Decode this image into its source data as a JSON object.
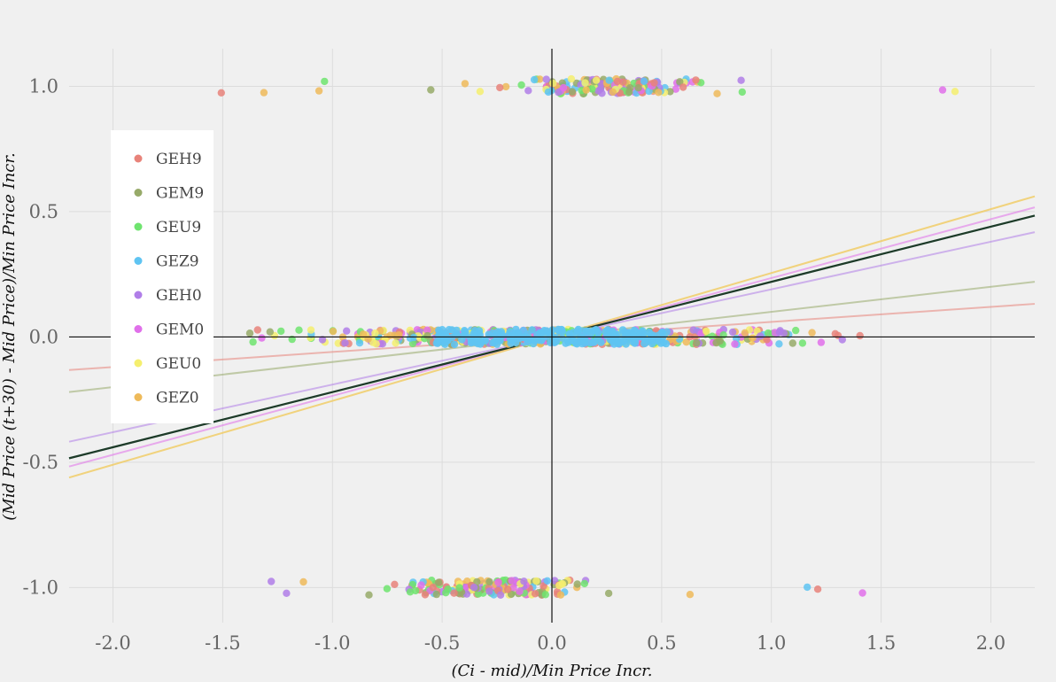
{
  "chart_data": {
    "type": "scatter",
    "title": "",
    "xlabel": "(Ci - mid)/Min Price Incr.",
    "ylabel": "(Mid Price (t+30) - Mid Price)/Min Price Incr.",
    "xlim": [
      -2.2,
      2.2
    ],
    "ylim": [
      -1.14,
      1.15
    ],
    "x_ticks": [
      -2.0,
      -1.5,
      -1.0,
      -0.5,
      0.0,
      0.5,
      1.0,
      1.5,
      2.0
    ],
    "x_tick_labels": [
      "-2.0",
      "-1.5",
      "-1.0",
      "-0.5",
      "0.0",
      "0.5",
      "1.0",
      "1.5",
      "2.0"
    ],
    "y_ticks": [
      1.0,
      0.5,
      0.0,
      -0.5,
      -1.0
    ],
    "y_tick_labels": [
      "1.0",
      "0.5",
      "0.0",
      "-0.5",
      "-1.0"
    ],
    "grid": true,
    "legend_position": "left",
    "series": [
      {
        "name": "GEH9",
        "color": "#e8837a",
        "slope": 0.06
      },
      {
        "name": "GEM9",
        "color": "#97aa69",
        "slope": 0.1
      },
      {
        "name": "GEU9",
        "color": "#6fe46f",
        "slope": 0.22
      },
      {
        "name": "GEZ9",
        "color": "#5fc4f2",
        "slope": 0.22
      },
      {
        "name": "GEH0",
        "color": "#b07ee8",
        "slope": 0.19
      },
      {
        "name": "GEM0",
        "color": "#e070ea",
        "slope": 0.235
      },
      {
        "name": "GEU0",
        "color": "#f5ef6e",
        "slope": 0.255
      },
      {
        "name": "GEZ0",
        "color": "#eeba5a",
        "slope": 0.255
      }
    ],
    "overall_fit": {
      "color": "#1e3a28",
      "slope": 0.22
    },
    "clusters": [
      {
        "y": 1.0,
        "x_center": 0.25,
        "x_spread": 0.2
      },
      {
        "y": 0.0,
        "x_center": 0.0,
        "x_spread": 0.55
      },
      {
        "y": -1.0,
        "x_center": -0.25,
        "x_spread": 0.2
      }
    ]
  }
}
